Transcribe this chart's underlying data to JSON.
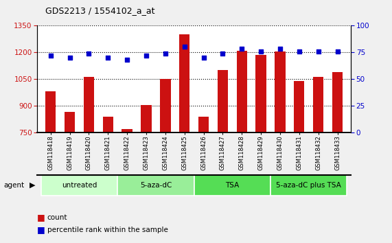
{
  "title": "GDS2213 / 1554102_a_at",
  "samples": [
    "GSM118418",
    "GSM118419",
    "GSM118420",
    "GSM118421",
    "GSM118422",
    "GSM118423",
    "GSM118424",
    "GSM118425",
    "GSM118426",
    "GSM118427",
    "GSM118428",
    "GSM118429",
    "GSM118430",
    "GSM118431",
    "GSM118432",
    "GSM118433"
  ],
  "counts": [
    980,
    865,
    1060,
    840,
    770,
    905,
    1050,
    1300,
    840,
    1100,
    1210,
    1185,
    1205,
    1040,
    1060,
    1090
  ],
  "percentiles": [
    72,
    70,
    74,
    70,
    68,
    72,
    74,
    80,
    70,
    74,
    78,
    76,
    78,
    76,
    76,
    76
  ],
  "bar_color": "#cc1111",
  "dot_color": "#0000cc",
  "ymin": 750,
  "ymax": 1350,
  "y2min": 0,
  "y2max": 100,
  "yticks": [
    750,
    900,
    1050,
    1200,
    1350
  ],
  "y2ticks": [
    0,
    25,
    50,
    75,
    100
  ],
  "groups": [
    {
      "label": "untreated",
      "start": 0,
      "end": 3,
      "color": "#ccffcc"
    },
    {
      "label": "5-aza-dC",
      "start": 4,
      "end": 7,
      "color": "#99ee99"
    },
    {
      "label": "TSA",
      "start": 8,
      "end": 11,
      "color": "#55dd55"
    },
    {
      "label": "5-aza-dC plus TSA",
      "start": 12,
      "end": 15,
      "color": "#55dd55"
    }
  ],
  "agent_label": "agent",
  "legend_count_label": "count",
  "legend_percentile_label": "percentile rank within the sample",
  "bar_width": 0.55,
  "fig_bg": "#f0f0f0",
  "plot_bg": "#ffffff",
  "tick_label_bg": "#dddddd"
}
